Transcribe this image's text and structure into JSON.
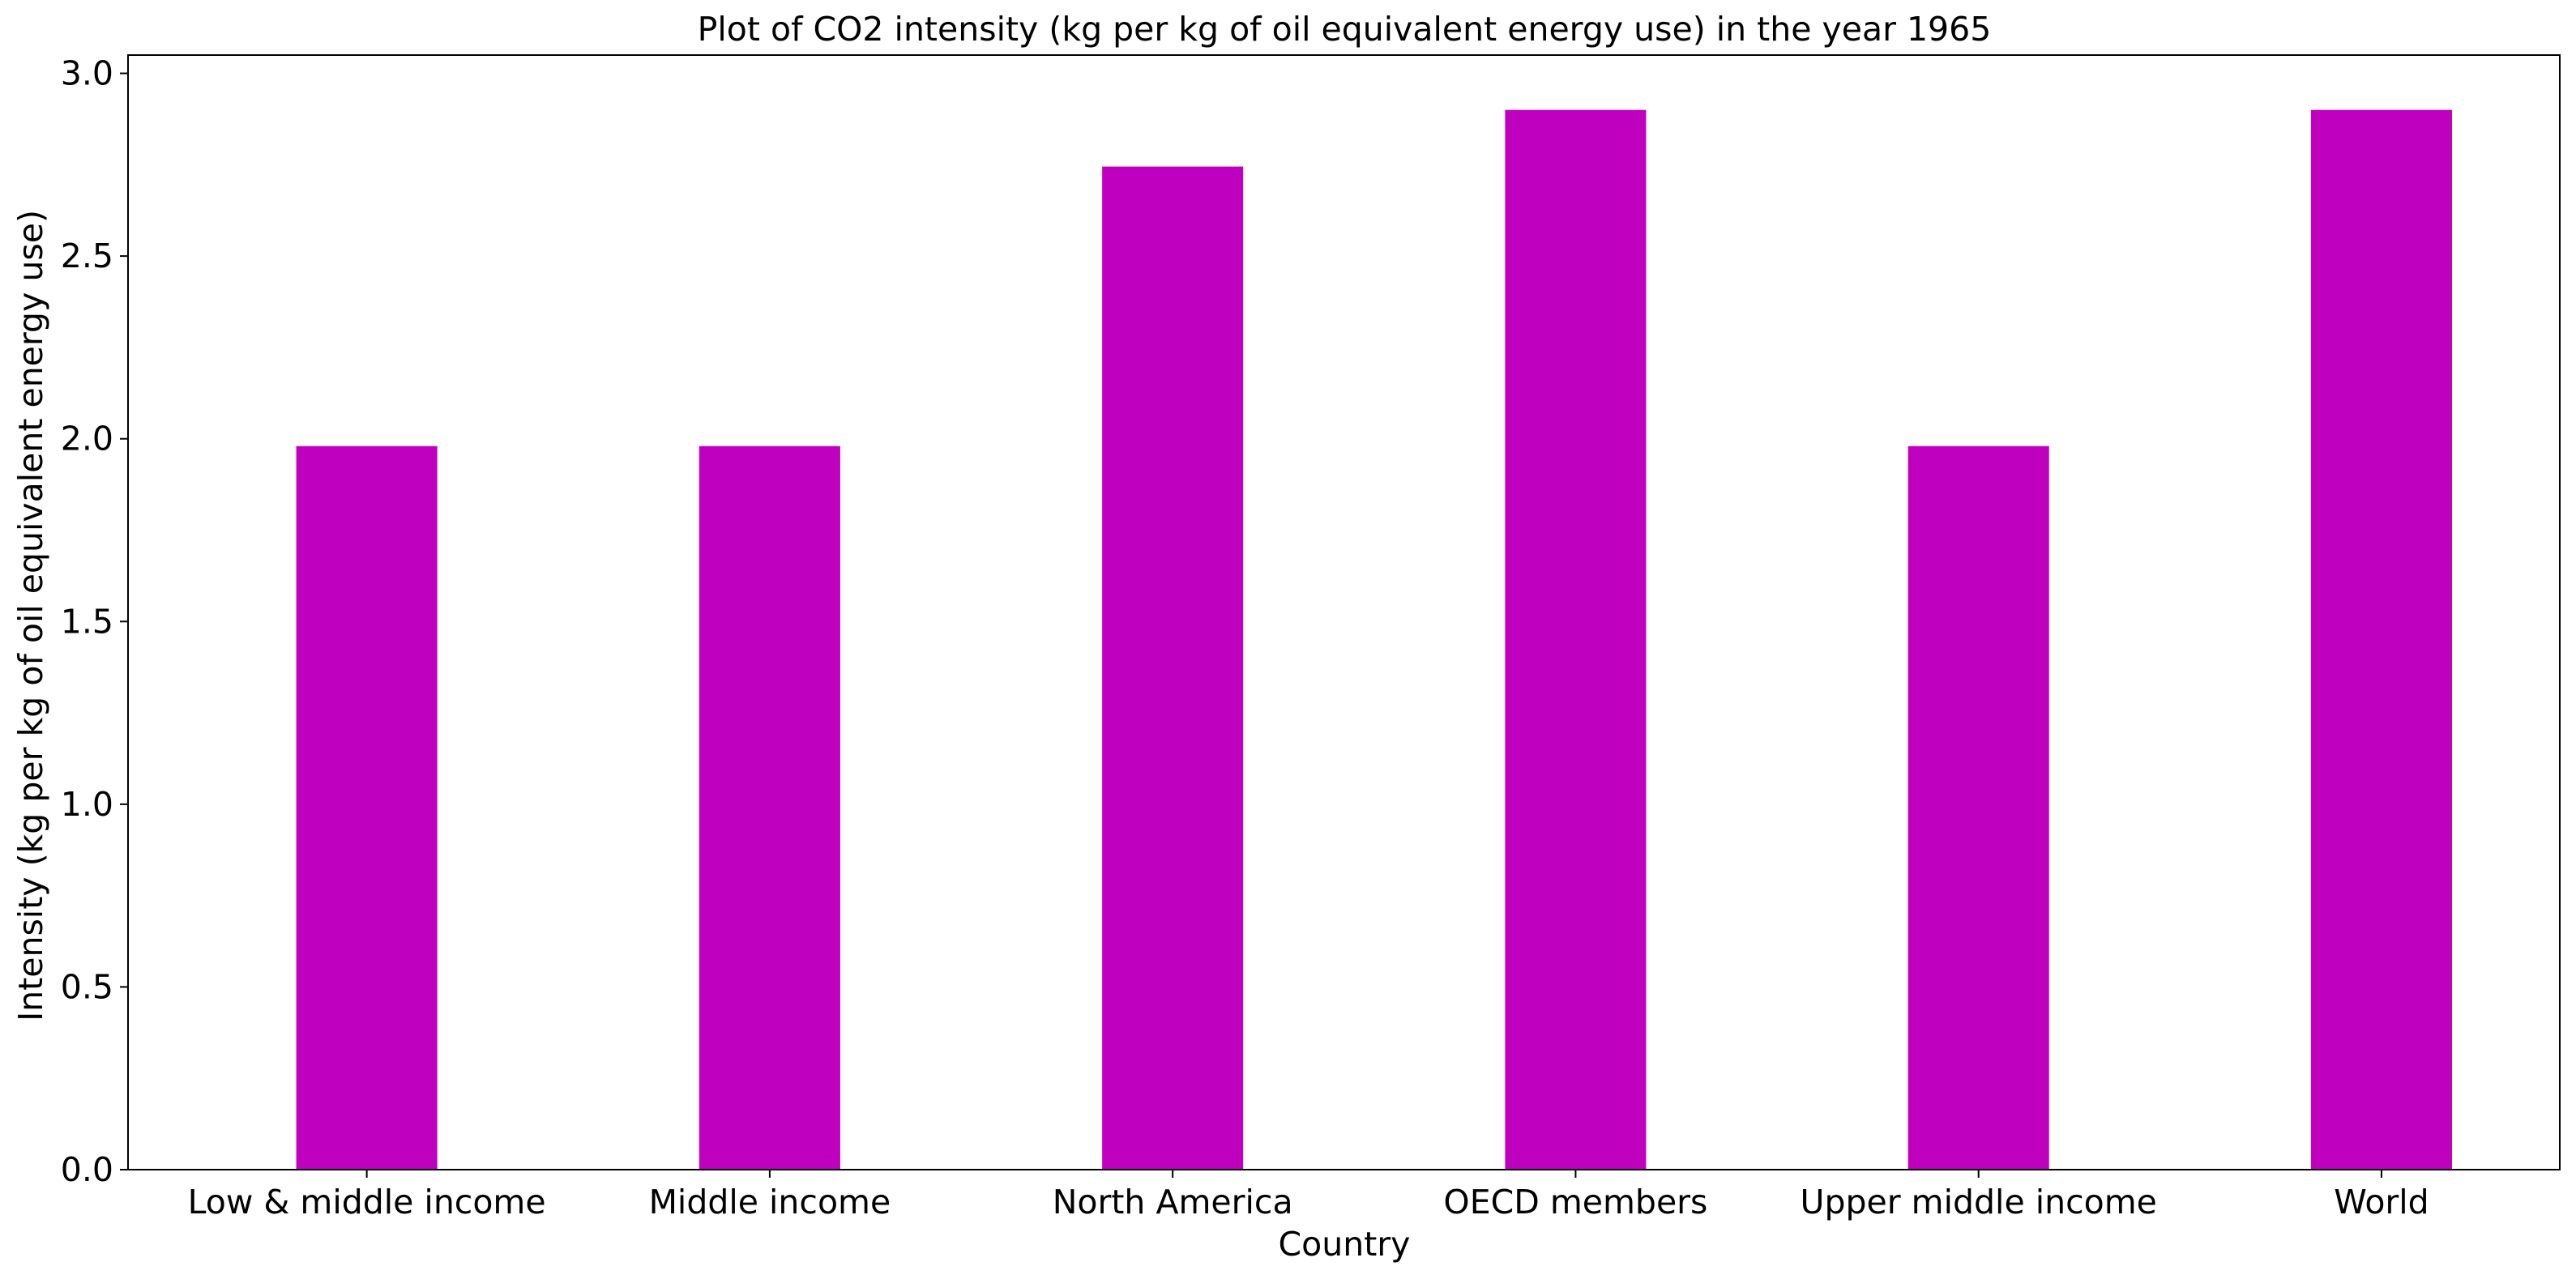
{
  "chart_data": {
    "type": "bar",
    "title": "Plot of CO2 intensity (kg per kg of oil equivalent energy use) in the year 1965",
    "xlabel": "Country",
    "ylabel": "Intensity (kg per kg of oil equivalent energy use)",
    "categories": [
      "Low & middle income",
      "Middle income",
      "North America",
      "OECD members",
      "Upper middle income",
      "World"
    ],
    "values": [
      1.98,
      1.98,
      2.745,
      2.9,
      1.98,
      2.9
    ],
    "ylim": [
      0,
      3.05
    ],
    "yticks": [
      0.0,
      0.5,
      1.0,
      1.5,
      2.0,
      2.5,
      3.0
    ],
    "ytick_labels": [
      "0.0",
      "0.5",
      "1.0",
      "1.5",
      "2.0",
      "2.5",
      "3.0"
    ],
    "bar_color": "#bf00bf",
    "grid": false,
    "legend": false
  }
}
